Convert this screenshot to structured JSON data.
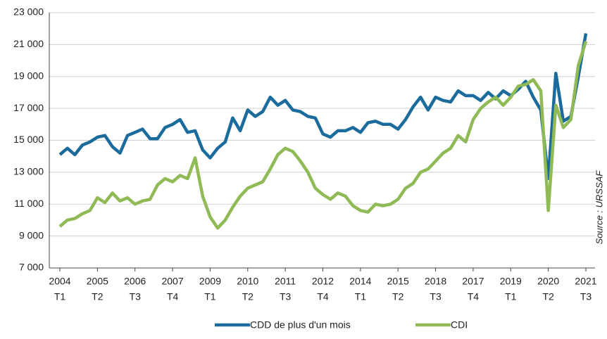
{
  "chart_data": {
    "type": "line",
    "categories": [
      [
        "2004",
        "T1"
      ],
      null,
      null,
      null,
      null,
      [
        "2005",
        "T2"
      ],
      null,
      null,
      null,
      null,
      [
        "2006",
        "T3"
      ],
      null,
      null,
      null,
      null,
      [
        "2007",
        "T4"
      ],
      null,
      null,
      null,
      null,
      [
        "2009",
        "T1"
      ],
      null,
      null,
      null,
      null,
      [
        "2010",
        "T2"
      ],
      null,
      null,
      null,
      null,
      [
        "2011",
        "T3"
      ],
      null,
      null,
      null,
      null,
      [
        "2012",
        "T4"
      ],
      null,
      null,
      null,
      null,
      [
        "2014",
        "T1"
      ],
      null,
      null,
      null,
      null,
      [
        "2015",
        "T2"
      ],
      null,
      null,
      null,
      null,
      [
        "2018",
        "T3"
      ],
      null,
      null,
      null,
      null,
      [
        "2017",
        "T4"
      ],
      null,
      null,
      null,
      null,
      [
        "2019",
        "T1"
      ],
      null,
      null,
      null,
      null,
      [
        "2020",
        "T2"
      ],
      null,
      null,
      null,
      null,
      [
        "2021",
        "T3"
      ]
    ],
    "series": [
      {
        "name": "CDD de plus d'un mois",
        "color": "#1b6c9c",
        "values": [
          14100,
          14500,
          14100,
          14700,
          14900,
          15200,
          15300,
          14600,
          14200,
          15300,
          15500,
          15700,
          15100,
          15100,
          15800,
          16000,
          16300,
          15500,
          15600,
          14400,
          13900,
          14500,
          14900,
          16400,
          15600,
          16900,
          16500,
          16800,
          17700,
          17200,
          17500,
          16900,
          16800,
          16500,
          16400,
          15400,
          15200,
          15600,
          15600,
          15800,
          15500,
          16100,
          16200,
          16000,
          16000,
          15700,
          16300,
          17100,
          17700,
          16900,
          17700,
          17500,
          17400,
          18100,
          17800,
          17800,
          17500,
          18000,
          17600,
          18100,
          17800,
          18200,
          18700,
          17700,
          16900,
          12600,
          19200,
          16200,
          16500,
          19000,
          21700
        ]
      },
      {
        "name": "CDI",
        "color": "#8fba55",
        "values": [
          9600,
          10000,
          10100,
          10400,
          10600,
          11400,
          11100,
          11700,
          11200,
          11400,
          11000,
          11200,
          11300,
          12200,
          12600,
          12400,
          12800,
          12600,
          13900,
          11500,
          10200,
          9500,
          10000,
          10800,
          11500,
          12000,
          12200,
          12400,
          13200,
          14100,
          14500,
          14300,
          13700,
          13000,
          12000,
          11600,
          11300,
          11700,
          11500,
          10900,
          10600,
          10500,
          11000,
          10900,
          11000,
          11300,
          12000,
          12300,
          13000,
          13200,
          13700,
          14200,
          14500,
          15300,
          14900,
          16300,
          17000,
          17400,
          17700,
          17200,
          17700,
          18400,
          18500,
          18800,
          18100,
          10600,
          17200,
          15800,
          16300,
          19700,
          21200
        ]
      }
    ],
    "ylim": [
      7000,
      23000
    ],
    "yticks": [
      {
        "value": 7000,
        "label": "7 000"
      },
      {
        "value": 9000,
        "label": "9 000"
      },
      {
        "value": 11000,
        "label": "11 000"
      },
      {
        "value": 13000,
        "label": "13 000"
      },
      {
        "value": 15000,
        "label": "15 000"
      },
      {
        "value": 17000,
        "label": "17 000"
      },
      {
        "value": 19000,
        "label": "19 000"
      },
      {
        "value": 21000,
        "label": "21 000"
      },
      {
        "value": 23000,
        "label": "23 000"
      }
    ],
    "grid": true,
    "source": "Source : URSSAF"
  }
}
